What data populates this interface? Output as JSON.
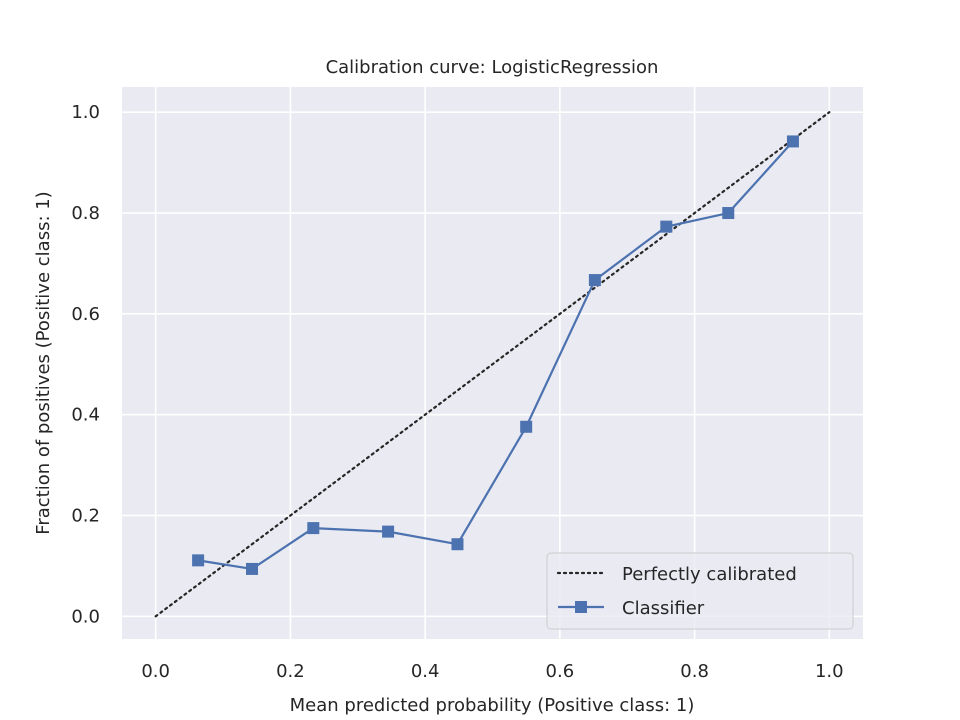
{
  "chart_data": {
    "type": "line",
    "title": "Calibration curve: LogisticRegression",
    "xlabel": "Mean predicted probability (Positive class: 1)",
    "ylabel": "Fraction of positives (Positive class: 1)",
    "xlim": [
      -0.05,
      1.05
    ],
    "ylim": [
      -0.045,
      1.05
    ],
    "xticks": [
      "0.0",
      "0.2",
      "0.4",
      "0.6",
      "0.8",
      "1.0"
    ],
    "yticks": [
      "0.0",
      "0.2",
      "0.4",
      "0.6",
      "0.8",
      "1.0"
    ],
    "grid": true,
    "legend_position": "bottom-right",
    "background_color": "#eaeaf2",
    "series": [
      {
        "name": "Perfectly calibrated",
        "style": "dotted",
        "color": "#262626",
        "x": [
          0.0,
          1.0
        ],
        "y": [
          0.0,
          1.0
        ]
      },
      {
        "name": "Classifier",
        "style": "line-square-markers",
        "color": "#4c72b0",
        "x": [
          0.063,
          0.143,
          0.234,
          0.345,
          0.448,
          0.55,
          0.652,
          0.758,
          0.85,
          0.946
        ],
        "y": [
          0.111,
          0.094,
          0.175,
          0.168,
          0.143,
          0.376,
          0.667,
          0.773,
          0.8,
          0.942
        ]
      }
    ]
  }
}
